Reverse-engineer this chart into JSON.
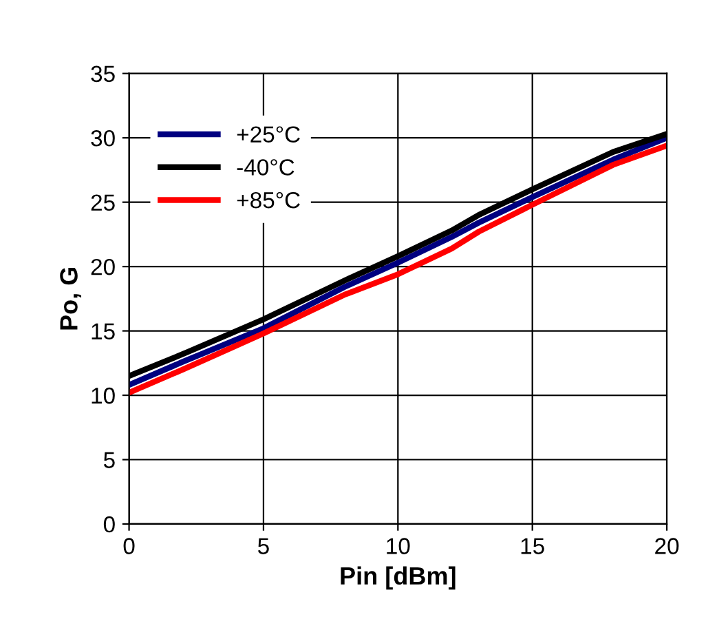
{
  "chart_data": {
    "type": "line",
    "xlabel": "Pin [dBm]",
    "ylabel": "Po, G",
    "x": [
      0,
      2,
      5,
      8,
      10,
      12,
      13,
      15,
      18,
      20
    ],
    "series": [
      {
        "name": "+25°C",
        "color": "#000080",
        "values": [
          10.8,
          12.6,
          15.2,
          18.4,
          20.3,
          22.3,
          23.4,
          25.4,
          28.3,
          30.0
        ]
      },
      {
        "name": "-40°C",
        "color": "#000000",
        "values": [
          11.5,
          13.2,
          15.9,
          18.9,
          20.8,
          22.8,
          24.0,
          26.0,
          28.9,
          30.3
        ]
      },
      {
        "name": "+85°C",
        "color": "#ff0000",
        "values": [
          10.2,
          12.0,
          14.8,
          17.8,
          19.4,
          21.4,
          22.7,
          24.8,
          27.9,
          29.4
        ]
      }
    ],
    "xlim": [
      0,
      20
    ],
    "xticks": [
      0,
      5,
      10,
      15,
      20
    ],
    "ylim": [
      0,
      35
    ],
    "yticks": [
      0,
      5,
      10,
      15,
      20,
      25,
      30,
      35
    ],
    "grid": true,
    "legend": "top left",
    "marker": "none",
    "line_style": "solid"
  }
}
